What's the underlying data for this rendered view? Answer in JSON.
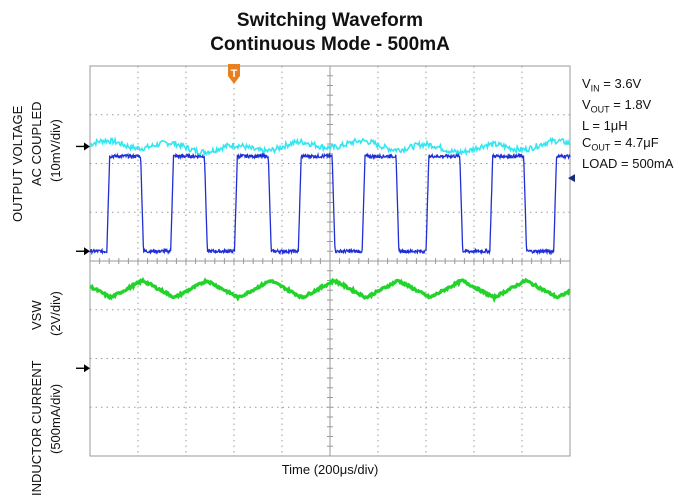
{
  "title": "Switching Waveform",
  "subtitle": "Continuous Mode - 500mA",
  "trigger_marker": "T",
  "params": {
    "vin_sym": "V",
    "vin_sub": "IN",
    "vin_val": " = 3.6V",
    "vout_sym": "V",
    "vout_sub": "OUT",
    "vout_val": " = 1.8V",
    "l": "L = 1μH",
    "cout_sym": "C",
    "cout_sub": "OUT",
    "cout_val": " = 4.7μF",
    "load": "LOAD = 500mA"
  },
  "colors": {
    "grid": "#9a9a9a",
    "output_voltage": "#33e6f0",
    "vsw": "#1f2fd6",
    "inductor_current": "#22d42a",
    "trigger": "#e8801e"
  },
  "chart_data": {
    "type": "line",
    "title": "Switching Waveform",
    "subtitle": "Continuous Mode - 500mA",
    "xlabel": "Time (200μs/div)",
    "x_divisions": 10,
    "y_divisions": 8,
    "grid": true,
    "channel_labels": {
      "output_voltage_line1": "OUTPUT VOLTAGE",
      "output_voltage_line2": "AC COUPLED",
      "output_voltage_scale": "(10mV/div)",
      "vsw_line1": "VSW",
      "vsw_scale": "(2V/div)",
      "inductor_line1": "INDUCTOR CURRENT",
      "inductor_scale": "(500mA/div)"
    },
    "series": [
      {
        "key": "output_voltage",
        "ground_div": 6.35,
        "kind": "ripple",
        "level_div": 6.35,
        "amplitude_div": 0.12
      },
      {
        "key": "vsw",
        "ground_div": 4.2,
        "kind": "square",
        "low_div": 4.2,
        "high_div": 6.15,
        "period_div": 1.33,
        "duty": 0.53,
        "first_rise_div": 0.35
      },
      {
        "key": "inductor_current",
        "ground_div": 1.8,
        "kind": "triangle",
        "min_div": 3.25,
        "max_div": 3.6,
        "period_div": 1.33,
        "first_peak_div": 1.1
      }
    ]
  }
}
